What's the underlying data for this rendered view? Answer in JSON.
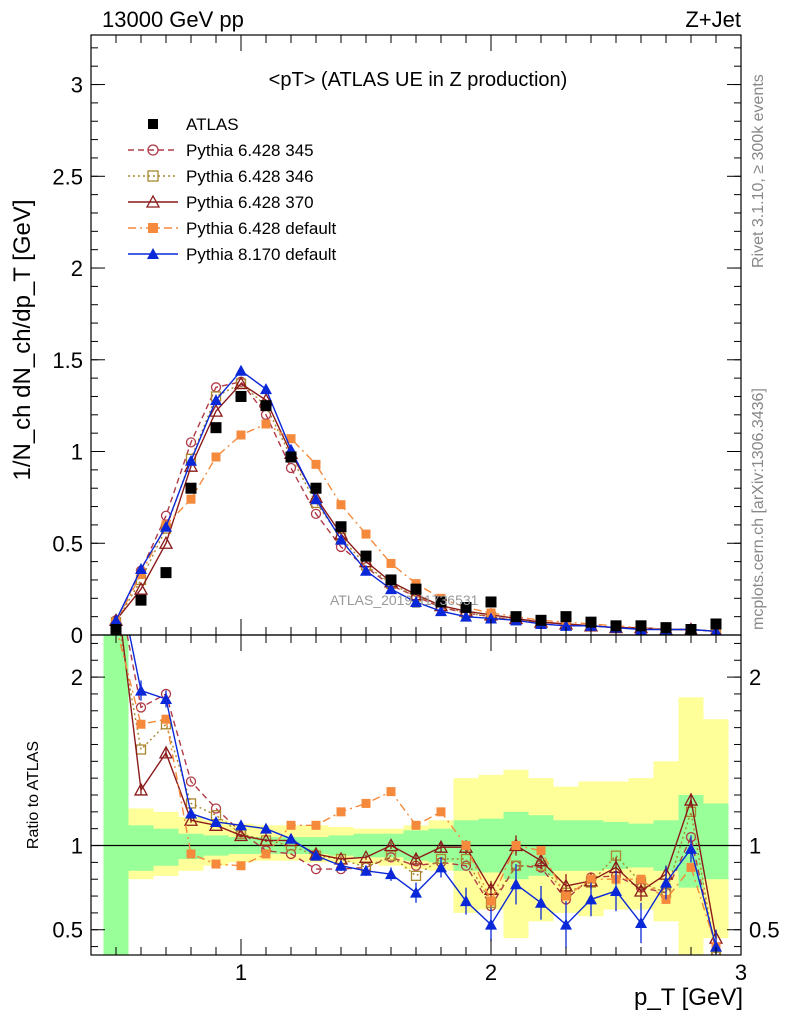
{
  "header": {
    "left": "13000 GeV pp",
    "right": "Z+Jet"
  },
  "side_texts": {
    "rivet": "Rivet 3.1.10, ≥ 300k events",
    "mcplots": "mcplots.cern.ch [arXiv:1306.3436]"
  },
  "watermark": "ATLAS_2019_I1736531",
  "legend": [
    {
      "label": "ATLAS",
      "color": "#000000",
      "marker": "square-filled",
      "dash": "none"
    },
    {
      "label": "Pythia 6.428 345",
      "color": "#b03a48",
      "marker": "circle-open",
      "dash": "6,4"
    },
    {
      "label": "Pythia 6.428 346",
      "color": "#a8872e",
      "marker": "square-open",
      "dash": "2,3"
    },
    {
      "label": "Pythia 6.428 370",
      "color": "#8b1a1a",
      "marker": "triangle-open",
      "dash": ""
    },
    {
      "label": "Pythia 6.428 default",
      "color": "#f58a3c",
      "marker": "square-filled",
      "dash": "8,4,2,4"
    },
    {
      "label": "Pythia 8.170 default",
      "color": "#0a28d8",
      "marker": "triangle-filled",
      "dash": ""
    }
  ],
  "chart_data": {
    "type": "line",
    "title": "<pT> (ATLAS UE in Z production)",
    "xlabel": "p_T [GeV]",
    "ylabel": "1/N_ch dN_ch/dp_T [GeV]",
    "ratio_ylabel": "Ratio to ATLAS",
    "xlim": [
      0.4,
      3.0
    ],
    "ylim": [
      0,
      3.27
    ],
    "ratio_ylim": [
      0.35,
      2.25
    ],
    "x_ticks": [
      1,
      2,
      3
    ],
    "y_ticks": [
      0,
      0.5,
      1,
      1.5,
      2,
      2.5,
      3
    ],
    "ratio_ticks": [
      0.5,
      1,
      2
    ],
    "x": [
      0.5,
      0.6,
      0.7,
      0.8,
      0.9,
      1.0,
      1.1,
      1.2,
      1.3,
      1.4,
      1.5,
      1.6,
      1.7,
      1.8,
      1.9,
      2.0,
      2.1,
      2.2,
      2.3,
      2.4,
      2.5,
      2.6,
      2.7,
      2.8,
      2.9
    ],
    "data": {
      "name": "ATLAS",
      "values": [
        0.03,
        0.19,
        0.34,
        0.8,
        1.13,
        1.3,
        1.25,
        0.97,
        0.8,
        0.59,
        0.43,
        0.3,
        0.25,
        0.18,
        0.15,
        0.18,
        0.1,
        0.08,
        0.1,
        0.07,
        0.05,
        0.05,
        0.04,
        0.03,
        0.06
      ]
    },
    "series": [
      {
        "name": "Pythia 6.428 345",
        "values": [
          0.08,
          0.35,
          0.65,
          1.05,
          1.35,
          1.38,
          1.2,
          0.91,
          0.66,
          0.48,
          0.37,
          0.27,
          0.21,
          0.15,
          0.12,
          0.1,
          0.08,
          0.07,
          0.06,
          0.05,
          0.04,
          0.04,
          0.03,
          0.03,
          0.02
        ]
      },
      {
        "name": "Pythia 6.428 346",
        "values": [
          0.07,
          0.3,
          0.58,
          0.96,
          1.3,
          1.37,
          1.25,
          0.97,
          0.72,
          0.53,
          0.38,
          0.28,
          0.21,
          0.16,
          0.12,
          0.1,
          0.08,
          0.07,
          0.06,
          0.05,
          0.04,
          0.04,
          0.03,
          0.03,
          0.02
        ]
      },
      {
        "name": "Pythia 6.428 370",
        "values": [
          0.08,
          0.25,
          0.5,
          0.92,
          1.22,
          1.37,
          1.28,
          0.99,
          0.75,
          0.55,
          0.4,
          0.29,
          0.22,
          0.16,
          0.13,
          0.11,
          0.09,
          0.07,
          0.06,
          0.05,
          0.04,
          0.04,
          0.03,
          0.03,
          0.02
        ]
      },
      {
        "name": "Pythia 6.428 default",
        "values": [
          0.07,
          0.33,
          0.6,
          0.74,
          0.97,
          1.09,
          1.15,
          1.07,
          0.93,
          0.71,
          0.55,
          0.39,
          0.28,
          0.2,
          0.15,
          0.12,
          0.1,
          0.08,
          0.07,
          0.06,
          0.05,
          0.04,
          0.03,
          0.03,
          0.02
        ]
      },
      {
        "name": "Pythia 8.170 default",
        "values": [
          0.08,
          0.36,
          0.59,
          0.95,
          1.28,
          1.44,
          1.34,
          1.01,
          0.74,
          0.52,
          0.35,
          0.25,
          0.18,
          0.13,
          0.1,
          0.09,
          0.08,
          0.06,
          0.05,
          0.05,
          0.04,
          0.03,
          0.03,
          0.03,
          0.02
        ]
      }
    ],
    "ratio_series": [
      {
        "name": "Pythia 6.428 345",
        "values": [
          2.6,
          1.82,
          1.9,
          1.38,
          1.22,
          1.08,
          0.97,
          0.95,
          0.86,
          0.86,
          0.87,
          0.93,
          0.88,
          0.9,
          0.88,
          0.64,
          0.88,
          0.87,
          0.68,
          0.81,
          0.82,
          0.75,
          0.72,
          1.05,
          0.37
        ]
      },
      {
        "name": "Pythia 6.428 346",
        "values": [
          2.4,
          1.57,
          1.72,
          1.25,
          1.18,
          1.07,
          1.03,
          1.0,
          0.94,
          0.92,
          0.87,
          0.94,
          0.82,
          0.92,
          0.92,
          0.66,
          0.88,
          0.88,
          0.72,
          0.78,
          0.94,
          0.78,
          0.72,
          1.2,
          0.34
        ]
      },
      {
        "name": "Pythia 6.428 370",
        "values": [
          2.55,
          1.33,
          1.55,
          1.15,
          1.12,
          1.06,
          1.03,
          1.03,
          0.95,
          0.92,
          0.93,
          1.0,
          0.92,
          0.99,
          0.99,
          0.74,
          1.0,
          0.91,
          0.76,
          0.79,
          0.87,
          0.73,
          0.83,
          1.27,
          0.45
        ]
      },
      {
        "name": "Pythia 6.428 default",
        "values": [
          2.3,
          1.72,
          1.75,
          0.95,
          0.89,
          0.88,
          0.95,
          1.12,
          1.12,
          1.2,
          1.25,
          1.32,
          1.12,
          1.2,
          1.0,
          0.67,
          1.0,
          0.97,
          0.7,
          0.8,
          0.8,
          0.8,
          0.68,
          0.87,
          0.4
        ]
      },
      {
        "name": "Pythia 8.170 default",
        "values": [
          2.65,
          1.92,
          1.87,
          1.19,
          1.14,
          1.12,
          1.1,
          1.04,
          0.94,
          0.88,
          0.85,
          0.83,
          0.72,
          0.87,
          0.67,
          0.53,
          0.77,
          0.66,
          0.53,
          0.68,
          0.73,
          0.54,
          0.78,
          0.98,
          0.4
        ]
      }
    ],
    "ratio_errors": [
      0.0,
      0.06,
      0.05,
      0.03,
      0.02,
      0.02,
      0.02,
      0.02,
      0.02,
      0.03,
      0.03,
      0.04,
      0.06,
      0.06,
      0.08,
      0.1,
      0.12,
      0.1,
      0.14,
      0.1,
      0.12,
      0.12,
      0.1,
      0.08,
      0.1
    ],
    "band_outer": [
      [
        0.25,
        2.3
      ],
      [
        0.8,
        1.22
      ],
      [
        0.82,
        1.2
      ],
      [
        0.85,
        1.17
      ],
      [
        0.88,
        1.15
      ],
      [
        0.9,
        1.13
      ],
      [
        0.91,
        1.12
      ],
      [
        0.91,
        1.12
      ],
      [
        0.9,
        1.12
      ],
      [
        0.9,
        1.11
      ],
      [
        0.89,
        1.1
      ],
      [
        0.88,
        1.1
      ],
      [
        0.86,
        1.12
      ],
      [
        0.85,
        1.15
      ],
      [
        0.6,
        1.4
      ],
      [
        0.62,
        1.42
      ],
      [
        0.45,
        1.45
      ],
      [
        0.55,
        1.4
      ],
      [
        0.6,
        1.35
      ],
      [
        0.58,
        1.38
      ],
      [
        0.62,
        1.38
      ],
      [
        0.62,
        1.4
      ],
      [
        0.55,
        1.5
      ],
      [
        0.35,
        1.88
      ],
      [
        0.45,
        1.75
      ]
    ],
    "band_inner": [
      [
        0.25,
        2.3
      ],
      [
        0.85,
        1.12
      ],
      [
        0.88,
        1.1
      ],
      [
        0.92,
        1.07
      ],
      [
        0.94,
        1.06
      ],
      [
        0.95,
        1.05
      ],
      [
        0.95,
        1.05
      ],
      [
        0.95,
        1.05
      ],
      [
        0.95,
        1.05
      ],
      [
        0.94,
        1.06
      ],
      [
        0.93,
        1.07
      ],
      [
        0.93,
        1.07
      ],
      [
        0.91,
        1.09
      ],
      [
        0.9,
        1.1
      ],
      [
        0.85,
        1.15
      ],
      [
        0.84,
        1.16
      ],
      [
        0.8,
        1.2
      ],
      [
        0.82,
        1.18
      ],
      [
        0.85,
        1.15
      ],
      [
        0.85,
        1.15
      ],
      [
        0.86,
        1.14
      ],
      [
        0.87,
        1.13
      ],
      [
        0.85,
        1.15
      ],
      [
        0.75,
        1.3
      ],
      [
        0.8,
        1.25
      ]
    ],
    "band_colors": {
      "outer": "#ffff99",
      "inner": "#99ff99"
    }
  }
}
